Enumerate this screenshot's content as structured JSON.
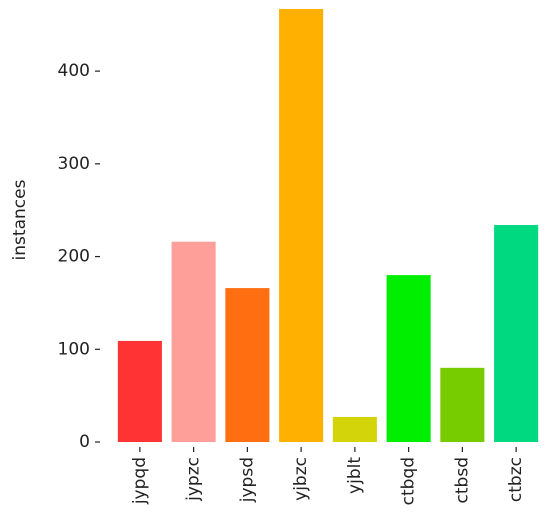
{
  "chart_data": {
    "type": "bar",
    "ylabel": "instances",
    "categories": [
      "jypqd",
      "jypzc",
      "jypsd",
      "yjbzc",
      "yjblt",
      "ctbqd",
      "ctbsd",
      "ctbzc"
    ],
    "values": [
      109,
      216,
      166,
      467,
      27,
      180,
      80,
      234
    ],
    "colors": [
      "#ff3333",
      "#ff9f99",
      "#ff6e11",
      "#ffb000",
      "#d4d40a",
      "#00ee00",
      "#77cc00",
      "#00d980"
    ],
    "ylim": [
      0,
      467
    ],
    "yticks": [
      0,
      100,
      200,
      300,
      400
    ],
    "grid": false
  }
}
